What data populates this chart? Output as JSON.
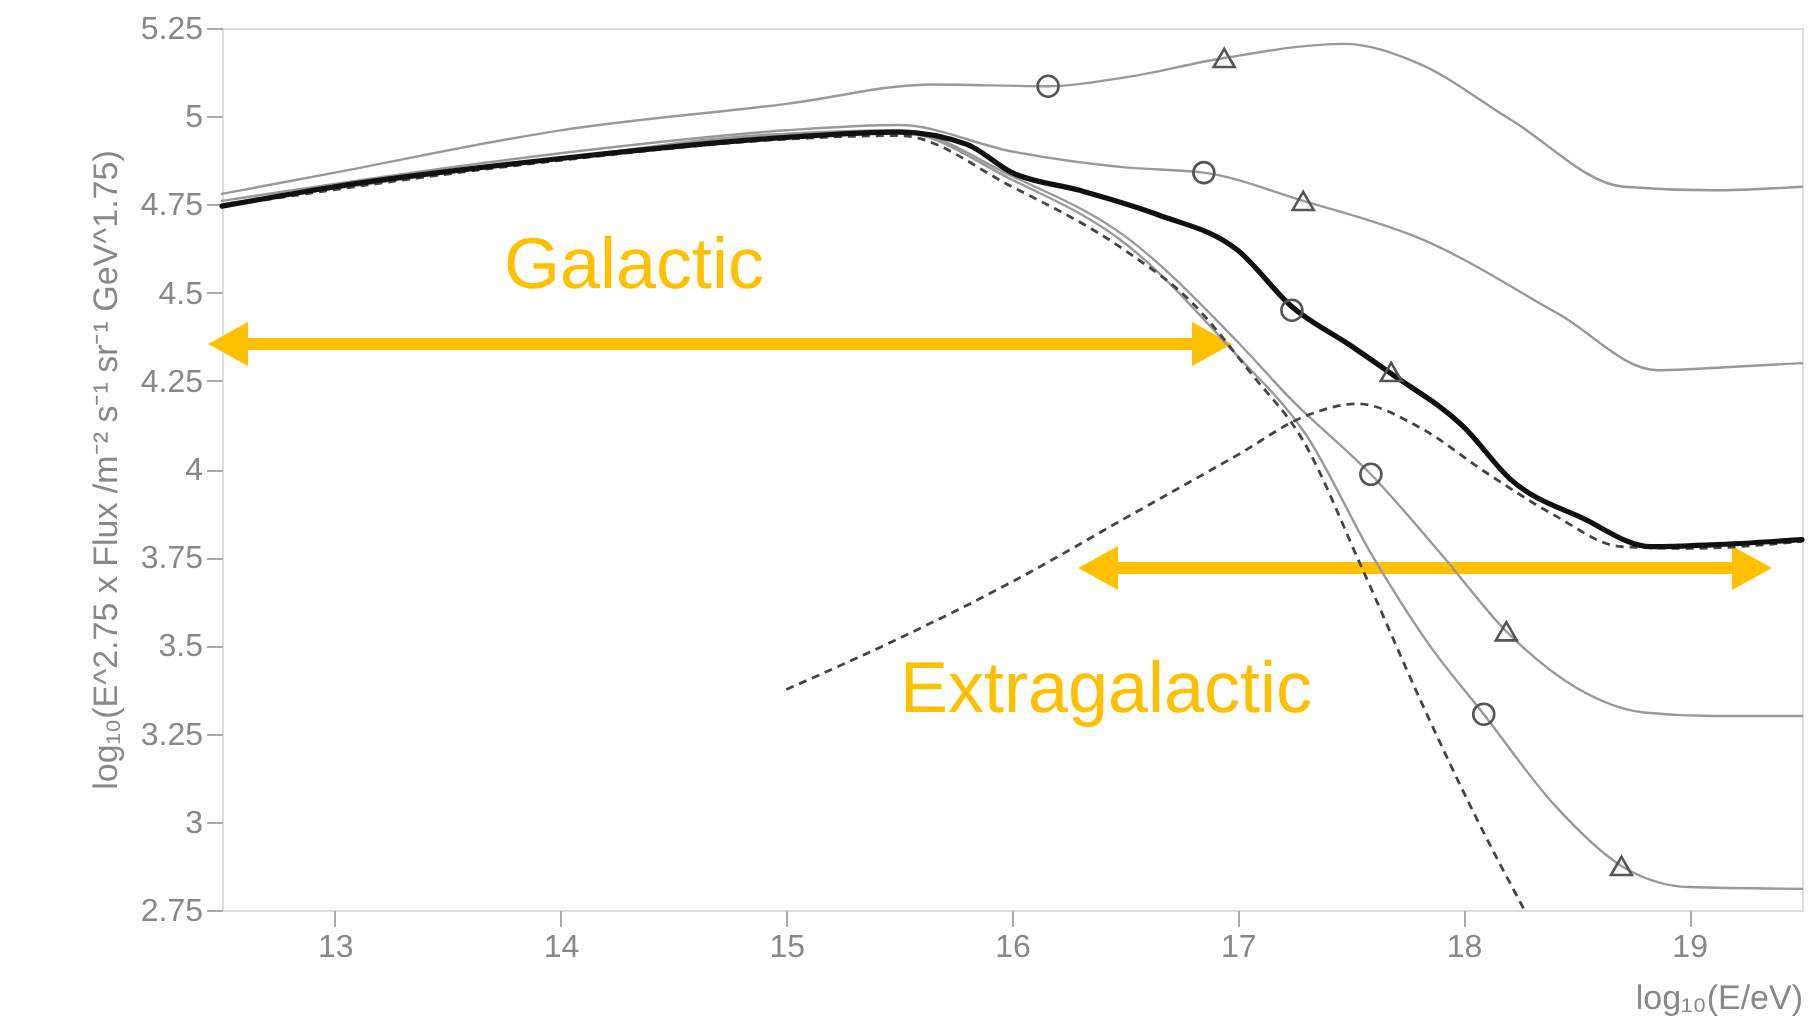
{
  "chart_data": {
    "type": "line",
    "xlabel": "log₁₀(E/eV)",
    "ylabel": "log₁₀(E^2.75 x Flux /m⁻² s⁻¹ sr⁻¹ GeV^1.75)",
    "xlim": [
      12.5,
      19.5
    ],
    "xticks": [
      13,
      14,
      15,
      16,
      17,
      18,
      19
    ],
    "ylim": [
      2.75,
      5.25
    ],
    "yticks": [
      2.75,
      3,
      3.25,
      3.5,
      3.75,
      4,
      4.25,
      4.5,
      4.75,
      5,
      5.25
    ],
    "grid": false,
    "series": [
      {
        "type": "line",
        "color": "#999999",
        "line_style": "solid",
        "x": [
          12.5,
          13,
          14,
          15,
          15.65,
          16.16,
          16.5,
          16.94,
          17.47,
          17.8,
          18.21,
          18.71,
          19.1,
          19.5
        ],
        "values": [
          4.78,
          4.84,
          4.96,
          5.035,
          5.09,
          5.085,
          5.11,
          5.165,
          5.205,
          5.15,
          4.99,
          4.8,
          4.79,
          4.8
        ]
      },
      {
        "type": "line",
        "color": "#999999",
        "line_style": "solid",
        "x": [
          12.5,
          14,
          15,
          15.5,
          16,
          16.5,
          16.85,
          17.29,
          17.82,
          18.42,
          18.86,
          19.2,
          19.5
        ],
        "values": [
          4.76,
          4.895,
          4.96,
          4.975,
          4.9,
          4.855,
          4.84,
          4.76,
          4.65,
          4.44,
          4.28,
          4.29,
          4.3
        ]
      },
      {
        "type": "line",
        "color": "#999999",
        "line_style": "solid",
        "x": [
          12.5,
          14,
          15,
          15.5,
          16,
          16.5,
          17,
          17.24,
          17.59,
          17.9,
          18.19,
          18.5,
          18.8,
          19.1,
          19.5
        ],
        "values": [
          4.75,
          4.88,
          4.95,
          4.96,
          4.83,
          4.66,
          4.36,
          4.195,
          3.985,
          3.76,
          3.54,
          3.38,
          3.31,
          3.3,
          3.3
        ]
      },
      {
        "type": "line",
        "color": "#999999",
        "line_style": "solid",
        "x": [
          12.5,
          14,
          15,
          15.5,
          16,
          16.5,
          17,
          17.3,
          17.6,
          17.85,
          18.09,
          18.4,
          18.7,
          19.0,
          19.5
        ],
        "values": [
          4.75,
          4.88,
          4.95,
          4.955,
          4.82,
          4.64,
          4.32,
          4.1,
          3.75,
          3.5,
          3.305,
          3.05,
          2.875,
          2.815,
          2.81
        ]
      },
      {
        "type": "line",
        "color": "#444444",
        "line_style": "dashed",
        "x": [
          12.5,
          14,
          15,
          15.5,
          16,
          16.5,
          16.8,
          17.06,
          17.29,
          17.55,
          17.82,
          18.05,
          18.27
        ],
        "values": [
          4.745,
          4.875,
          4.935,
          4.945,
          4.8,
          4.62,
          4.47,
          4.27,
          4.08,
          3.72,
          3.33,
          3.02,
          2.75
        ]
      },
      {
        "type": "line",
        "color": "#444444",
        "line_style": "dashed",
        "x": [
          15,
          15.5,
          16,
          16.5,
          17,
          17.3,
          17.53,
          17.8,
          18.1,
          18.4,
          18.7,
          19,
          19.5
        ],
        "values": [
          3.375,
          3.52,
          3.68,
          3.86,
          4.04,
          4.15,
          4.185,
          4.12,
          3.99,
          3.87,
          3.78,
          3.775,
          3.795
        ]
      },
      {
        "type": "line",
        "color": "#111111",
        "line_style": "solid",
        "x": [
          12.5,
          13,
          14,
          15,
          15.5,
          15.8,
          16,
          16.3,
          16.65,
          17,
          17.24,
          17.5,
          17.68,
          18,
          18.21,
          18.53,
          18.83,
          19.1,
          19.5
        ],
        "values": [
          4.745,
          4.8,
          4.88,
          4.94,
          4.955,
          4.92,
          4.84,
          4.79,
          4.72,
          4.62,
          4.46,
          4.35,
          4.27,
          4.12,
          3.97,
          3.86,
          3.78,
          3.785,
          3.8
        ]
      },
      {
        "type": "scatter",
        "marker": "circle",
        "color": "#555555",
        "x": [
          16.16,
          16.85,
          17.24,
          17.59,
          18.09
        ],
        "values": [
          5.085,
          4.84,
          4.45,
          3.985,
          3.305
        ]
      },
      {
        "type": "scatter",
        "marker": "triangle",
        "color": "#555555",
        "x": [
          16.94,
          17.29,
          17.68,
          18.19,
          18.7
        ],
        "values": [
          5.165,
          4.76,
          4.275,
          3.54,
          2.875
        ]
      }
    ],
    "annotations": [
      "Galactic",
      "Extragalactic"
    ]
  }
}
